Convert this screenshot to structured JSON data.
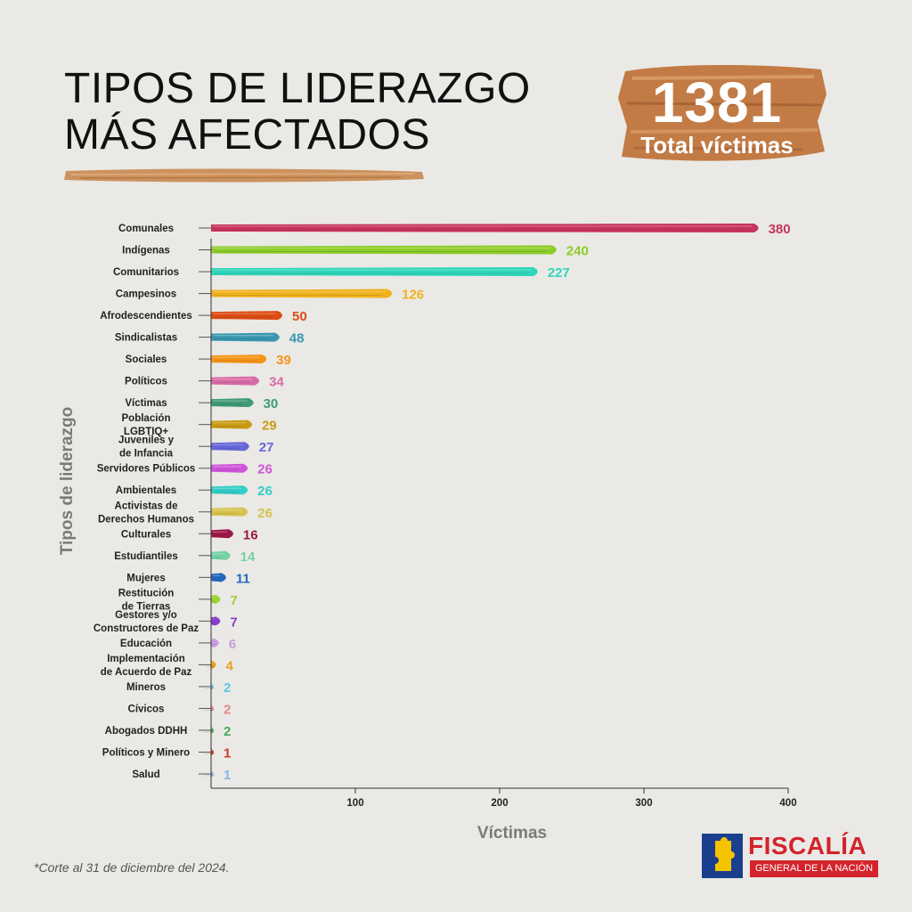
{
  "header": {
    "title_line1": "TIPOS DE LIDERAZGO",
    "title_line2": "MÁS AFECTADOS",
    "total_value": "1381",
    "total_label": "Total víctimas"
  },
  "footnote": "*Corte al 31 de diciembre del 2024.",
  "logo": {
    "name": "FISCALÍA",
    "subtitle": "GENERAL DE LA NACIÓN"
  },
  "colors": {
    "accent_brush": "#c9884f",
    "logo_red": "#d4232c",
    "logo_blue": "#1a3f8f",
    "logo_yellow": "#f5c400"
  },
  "chart_data": {
    "type": "bar",
    "orientation": "horizontal",
    "xlabel": "Víctimas",
    "ylabel": "Tipos de liderazgo",
    "xlim": [
      0,
      400
    ],
    "xticks": [
      100,
      200,
      300,
      400
    ],
    "grid": false,
    "categories": [
      {
        "label": [
          "Comunales"
        ],
        "value": 380,
        "color": "#c8335c"
      },
      {
        "label": [
          "Indígenas"
        ],
        "value": 240,
        "color": "#8ccc28"
      },
      {
        "label": [
          "Comunitarios"
        ],
        "value": 227,
        "color": "#2fd6bb"
      },
      {
        "label": [
          "Campesinos"
        ],
        "value": 126,
        "color": "#f0b21c"
      },
      {
        "label": [
          "Afrodescendientes"
        ],
        "value": 50,
        "color": "#de4c14"
      },
      {
        "label": [
          "Sindicalistas"
        ],
        "value": 48,
        "color": "#3a97b0"
      },
      {
        "label": [
          "Sociales"
        ],
        "value": 39,
        "color": "#f59416"
      },
      {
        "label": [
          "Políticos"
        ],
        "value": 34,
        "color": "#d96aa6"
      },
      {
        "label": [
          "Víctimas"
        ],
        "value": 30,
        "color": "#3e9a77"
      },
      {
        "label": [
          "Población",
          "LGBTIQ+"
        ],
        "value": 29,
        "color": "#c99b14"
      },
      {
        "label": [
          "Juveniles y",
          "de Infancia"
        ],
        "value": 27,
        "color": "#6767d9"
      },
      {
        "label": [
          "Servidores Públicos"
        ],
        "value": 26,
        "color": "#cf55d9"
      },
      {
        "label": [
          "Ambientales"
        ],
        "value": 26,
        "color": "#33cdc6"
      },
      {
        "label": [
          "Activistas de",
          "Derechos Humanos"
        ],
        "value": 26,
        "color": "#d6c34e"
      },
      {
        "label": [
          "Culturales"
        ],
        "value": 16,
        "color": "#9c1848"
      },
      {
        "label": [
          "Estudiantiles"
        ],
        "value": 14,
        "color": "#75d0a6"
      },
      {
        "label": [
          "Mujeres"
        ],
        "value": 11,
        "color": "#2168bd"
      },
      {
        "label": [
          "Restitución",
          "de Tierras"
        ],
        "value": 7,
        "color": "#9bd336"
      },
      {
        "label": [
          "Gestores y/o",
          "Constructores de Paz"
        ],
        "value": 7,
        "color": "#8a3fc9"
      },
      {
        "label": [
          "Educación"
        ],
        "value": 6,
        "color": "#c99be0"
      },
      {
        "label": [
          "Implementación",
          "de Acuerdo de Paz"
        ],
        "value": 4,
        "color": "#e8a01c"
      },
      {
        "label": [
          "Mineros"
        ],
        "value": 2,
        "color": "#5bc8e0"
      },
      {
        "label": [
          "Cívicos"
        ],
        "value": 2,
        "color": "#e08a8a"
      },
      {
        "label": [
          "Abogados DDHH"
        ],
        "value": 2,
        "color": "#4aa857"
      },
      {
        "label": [
          "Políticos y Minero"
        ],
        "value": 1,
        "color": "#cf3a1e"
      },
      {
        "label": [
          "Salud"
        ],
        "value": 1,
        "color": "#86b5e6"
      }
    ]
  }
}
